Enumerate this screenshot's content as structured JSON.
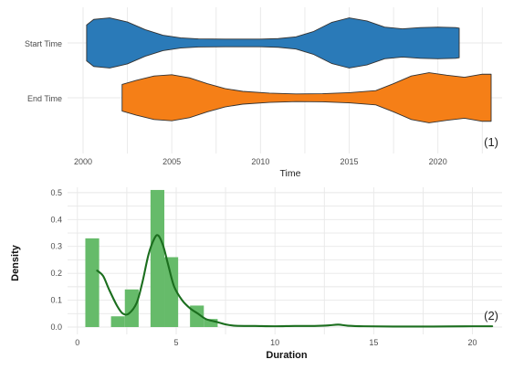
{
  "chart_data": [
    {
      "type": "violin",
      "panel_tag": "(1)",
      "xlabel": "Time",
      "ylabel": "",
      "xlim": [
        2000,
        2023
      ],
      "x_ticks": [
        2000,
        2005,
        2010,
        2015,
        2020
      ],
      "grid": true,
      "series": [
        {
          "name": "Start Time",
          "color": "#2a7ab8",
          "x_start": 2000.2,
          "x_end": 2021.2,
          "profile": [
            [
              2000.2,
              0.7
            ],
            [
              2000.6,
              0.92
            ],
            [
              2001.5,
              0.98
            ],
            [
              2002.5,
              0.82
            ],
            [
              2003.5,
              0.52
            ],
            [
              2004.5,
              0.3
            ],
            [
              2005.5,
              0.2
            ],
            [
              2006.5,
              0.16
            ],
            [
              2008.0,
              0.15
            ],
            [
              2010.0,
              0.15
            ],
            [
              2011.0,
              0.17
            ],
            [
              2012.0,
              0.24
            ],
            [
              2013.0,
              0.45
            ],
            [
              2014.0,
              0.8
            ],
            [
              2015.0,
              0.98
            ],
            [
              2016.0,
              0.86
            ],
            [
              2017.0,
              0.62
            ],
            [
              2018.0,
              0.55
            ],
            [
              2019.0,
              0.6
            ],
            [
              2020.0,
              0.62
            ],
            [
              2021.0,
              0.6
            ],
            [
              2021.2,
              0.58
            ]
          ]
        },
        {
          "name": "End Time",
          "color": "#f57f17",
          "x_start": 2002.2,
          "x_end": 2023.0,
          "profile": [
            [
              2002.2,
              0.52
            ],
            [
              2003.0,
              0.68
            ],
            [
              2004.0,
              0.85
            ],
            [
              2005.0,
              0.9
            ],
            [
              2006.0,
              0.78
            ],
            [
              2007.0,
              0.55
            ],
            [
              2008.0,
              0.36
            ],
            [
              2009.0,
              0.25
            ],
            [
              2010.5,
              0.18
            ],
            [
              2012.0,
              0.15
            ],
            [
              2013.5,
              0.16
            ],
            [
              2015.0,
              0.2
            ],
            [
              2016.5,
              0.28
            ],
            [
              2017.5,
              0.55
            ],
            [
              2018.5,
              0.85
            ],
            [
              2019.5,
              0.98
            ],
            [
              2020.5,
              0.88
            ],
            [
              2021.5,
              0.8
            ],
            [
              2022.5,
              0.92
            ],
            [
              2023.0,
              0.92
            ]
          ]
        }
      ]
    },
    {
      "type": "histogram_density",
      "panel_tag": "(2)",
      "xlabel": "Duration",
      "ylabel": "Density",
      "xlim": [
        -0.5,
        21.5
      ],
      "ylim": [
        0,
        0.52
      ],
      "x_ticks": [
        0,
        5,
        10,
        15,
        20
      ],
      "y_ticks": [
        0.0,
        0.1,
        0.2,
        0.3,
        0.4,
        0.5
      ],
      "grid": true,
      "bar_color": "#66bb6a",
      "line_color": "#1b6e1e",
      "bins": [
        {
          "x0": 0.4,
          "x1": 1.1,
          "density": 0.33
        },
        {
          "x0": 1.7,
          "x1": 2.4,
          "density": 0.04
        },
        {
          "x0": 2.4,
          "x1": 3.1,
          "density": 0.14
        },
        {
          "x0": 3.7,
          "x1": 4.4,
          "density": 0.51
        },
        {
          "x0": 4.4,
          "x1": 5.1,
          "density": 0.26
        },
        {
          "x0": 5.7,
          "x1": 6.4,
          "density": 0.08
        },
        {
          "x0": 6.4,
          "x1": 7.1,
          "density": 0.03
        }
      ],
      "density_curve": [
        [
          1.0,
          0.21
        ],
        [
          1.3,
          0.19
        ],
        [
          1.6,
          0.14
        ],
        [
          2.0,
          0.08
        ],
        [
          2.3,
          0.05
        ],
        [
          2.6,
          0.05
        ],
        [
          3.0,
          0.09
        ],
        [
          3.3,
          0.17
        ],
        [
          3.6,
          0.27
        ],
        [
          3.9,
          0.33
        ],
        [
          4.1,
          0.34
        ],
        [
          4.35,
          0.3
        ],
        [
          4.6,
          0.23
        ],
        [
          4.9,
          0.15
        ],
        [
          5.3,
          0.1
        ],
        [
          5.7,
          0.07
        ],
        [
          6.1,
          0.05
        ],
        [
          6.5,
          0.03
        ],
        [
          7.0,
          0.02
        ],
        [
          7.5,
          0.01
        ],
        [
          8.0,
          0.005
        ],
        [
          9.0,
          0.004
        ],
        [
          10.0,
          0.003
        ],
        [
          11.0,
          0.004
        ],
        [
          12.0,
          0.004
        ],
        [
          12.7,
          0.006
        ],
        [
          13.2,
          0.009
        ],
        [
          13.7,
          0.005
        ],
        [
          14.5,
          0.003
        ],
        [
          16.0,
          0.002
        ],
        [
          18.0,
          0.002
        ],
        [
          20.0,
          0.003
        ],
        [
          21.0,
          0.003
        ]
      ]
    }
  ]
}
